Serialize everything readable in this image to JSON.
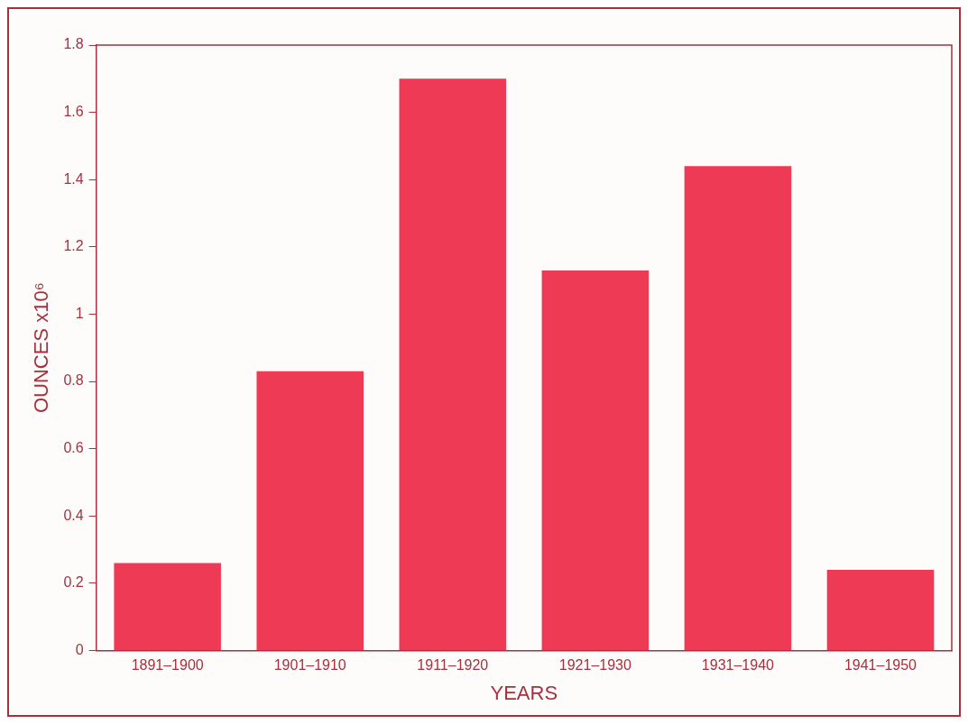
{
  "chart_data": {
    "type": "bar",
    "xlabel": "YEARS",
    "ylabel": "OUNCES x10⁶",
    "categories": [
      "1891–1900",
      "1901–1910",
      "1911–1920",
      "1921–1930",
      "1931–1940",
      "1941–1950"
    ],
    "values": [
      0.26,
      0.83,
      1.7,
      1.13,
      1.44,
      0.24
    ],
    "color": "#ee3a55",
    "ylim": [
      0,
      1.8
    ],
    "yticks": [
      0,
      0.2,
      0.4,
      0.6,
      0.8,
      1,
      1.2,
      1.4,
      1.6,
      1.8
    ],
    "grid": false,
    "legend": false
  }
}
